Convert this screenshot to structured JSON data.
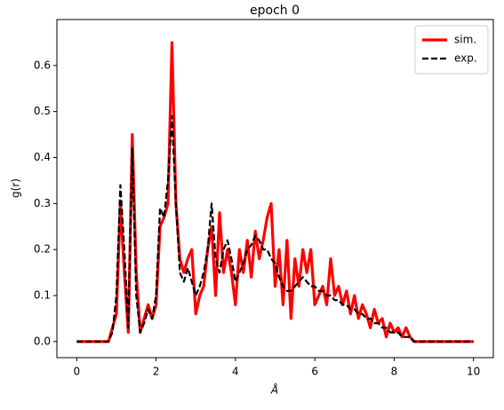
{
  "chart_data": {
    "type": "line",
    "title": "epoch 0",
    "xlabel": "Å",
    "ylabel": "g(r)",
    "x": [
      0,
      0.1,
      0.2,
      0.3,
      0.4,
      0.5,
      0.6,
      0.7,
      0.8,
      0.9,
      1,
      1.1,
      1.2,
      1.3,
      1.4,
      1.5,
      1.6,
      1.7,
      1.8,
      1.9,
      2,
      2.1,
      2.2,
      2.3,
      2.4,
      2.5,
      2.6,
      2.7,
      2.8,
      2.9,
      3,
      3.1,
      3.2,
      3.3,
      3.4,
      3.5,
      3.6,
      3.7,
      3.8,
      3.9,
      4,
      4.1,
      4.2,
      4.3,
      4.4,
      4.5,
      4.6,
      4.7,
      4.8,
      4.9,
      5,
      5.1,
      5.2,
      5.3,
      5.4,
      5.5,
      5.6,
      5.7,
      5.8,
      5.9,
      6,
      6.1,
      6.2,
      6.3,
      6.4,
      6.5,
      6.6,
      6.7,
      6.8,
      6.9,
      7,
      7.1,
      7.2,
      7.3,
      7.4,
      7.5,
      7.6,
      7.7,
      7.8,
      7.9,
      8,
      8.1,
      8.2,
      8.3,
      8.4,
      8.5,
      8.6,
      8.7,
      8.8,
      8.9,
      9,
      9.1,
      9.2,
      9.3,
      9.4,
      9.5,
      9.6,
      9.7,
      9.8,
      9.9,
      10
    ],
    "series": [
      {
        "name": "sim.",
        "color": "#ff0000",
        "style": "solid",
        "values": [
          0,
          0,
          0,
          0,
          0,
          0,
          0,
          0,
          0,
          0.03,
          0.06,
          0.3,
          0.15,
          0.02,
          0.45,
          0.15,
          0.02,
          0.05,
          0.08,
          0.05,
          0.08,
          0.25,
          0.27,
          0.3,
          0.65,
          0.3,
          0.18,
          0.15,
          0.18,
          0.2,
          0.06,
          0.1,
          0.12,
          0.2,
          0.25,
          0.1,
          0.28,
          0.15,
          0.2,
          0.15,
          0.08,
          0.2,
          0.15,
          0.22,
          0.14,
          0.24,
          0.18,
          0.22,
          0.27,
          0.3,
          0.12,
          0.2,
          0.08,
          0.22,
          0.05,
          0.18,
          0.12,
          0.2,
          0.15,
          0.2,
          0.08,
          0.1,
          0.12,
          0.08,
          0.18,
          0.1,
          0.12,
          0.08,
          0.11,
          0.06,
          0.1,
          0.05,
          0.08,
          0.06,
          0.03,
          0.07,
          0.04,
          0.05,
          0.01,
          0.04,
          0.02,
          0.03,
          0.01,
          0.03,
          0.01,
          0,
          0,
          0,
          0,
          0,
          0,
          0,
          0,
          0,
          0,
          0,
          0,
          0,
          0,
          0,
          0
        ]
      },
      {
        "name": "exp.",
        "color": "#000000",
        "style": "dashed",
        "values": [
          0,
          0,
          0,
          0,
          0,
          0,
          0,
          0,
          0,
          0.02,
          0.1,
          0.34,
          0.2,
          0.03,
          0.42,
          0.1,
          0.02,
          0.04,
          0.07,
          0.05,
          0.1,
          0.29,
          0.27,
          0.35,
          0.49,
          0.3,
          0.15,
          0.13,
          0.16,
          0.13,
          0.1,
          0.12,
          0.15,
          0.2,
          0.3,
          0.18,
          0.15,
          0.2,
          0.22,
          0.18,
          0.13,
          0.15,
          0.17,
          0.2,
          0.21,
          0.23,
          0.22,
          0.2,
          0.2,
          0.18,
          0.17,
          0.14,
          0.12,
          0.11,
          0.11,
          0.12,
          0.13,
          0.14,
          0.13,
          0.12,
          0.12,
          0.11,
          0.11,
          0.1,
          0.1,
          0.09,
          0.09,
          0.08,
          0.08,
          0.07,
          0.07,
          0.06,
          0.06,
          0.05,
          0.05,
          0.04,
          0.04,
          0.03,
          0.03,
          0.02,
          0.02,
          0.02,
          0.01,
          0.01,
          0.01,
          0,
          0,
          0,
          0,
          0,
          0,
          0,
          0,
          0,
          0,
          0,
          0,
          0,
          0,
          0,
          0
        ]
      }
    ],
    "xlim": [
      -0.5,
      10.5
    ],
    "xticks": [
      0,
      2,
      4,
      6,
      8,
      10
    ],
    "ylim": [
      -0.035,
      0.7
    ],
    "yticks": [
      {
        "value": 0,
        "label": "0.0"
      },
      0.1,
      0.2,
      0.3,
      0.4,
      0.5,
      0.6
    ],
    "legend": "upper right"
  }
}
